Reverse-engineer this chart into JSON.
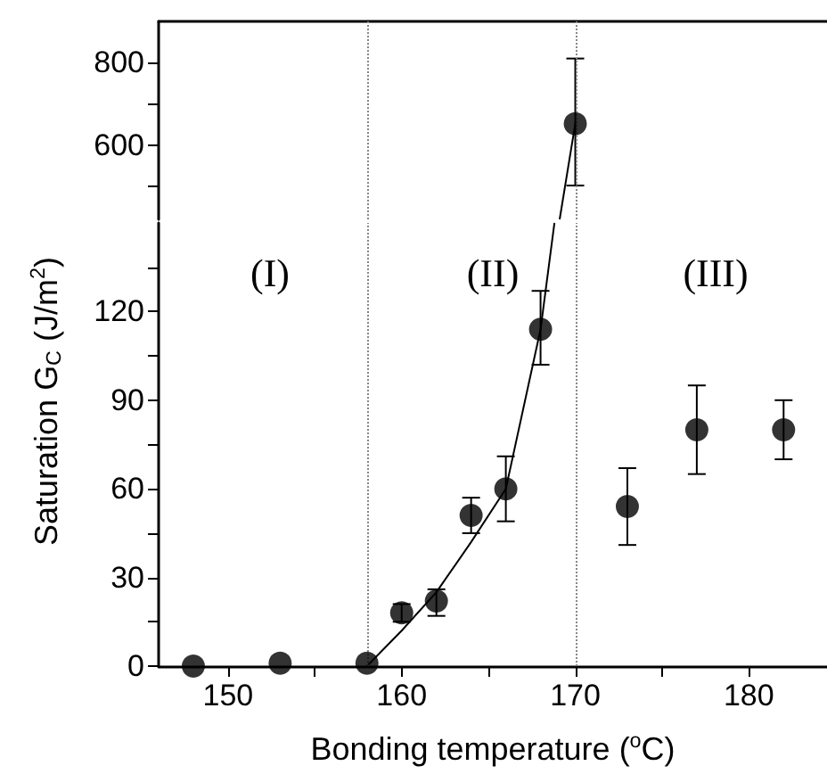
{
  "chart_data": [
    {
      "type": "scatter",
      "tick_labels": "y",
      "xlim": [
        146,
        184.5
      ],
      "ylim": [
        420,
        900
      ],
      "yticks": [
        {
          "value": 500,
          "label": null
        },
        600,
        {
          "value": 700,
          "label": null
        },
        800
      ],
      "series": [
        {
          "marker": "circle",
          "color": "#000000",
          "x": [
            170
          ],
          "values": [
            652
          ],
          "errors": [
            [
              502,
              810
            ]
          ]
        },
        {
          "type": "line",
          "color": "#000000",
          "x": [
            169.1,
            170
          ],
          "values": [
            420,
            652
          ]
        }
      ],
      "ref_lines": [
        {
          "axis": "x",
          "value": 158,
          "color": "#888888",
          "line_style": "dotted"
        },
        {
          "axis": "x",
          "value": 170,
          "color": "#888888",
          "line_style": "dotted"
        }
      ]
    },
    {
      "type": "scatter",
      "xlabel": "Bonding temperature ($^{o}$C)",
      "ylabel": "Saturation G$_{C}$ (J/m$^{2}$)",
      "xlim": [
        146,
        184.5
      ],
      "ylim": [
        0,
        150
      ],
      "xticks": [
        150,
        {
          "value": 155,
          "label": null
        },
        160,
        {
          "value": 165,
          "label": null
        },
        170,
        {
          "value": 175,
          "label": null
        },
        180
      ],
      "yticks": [
        0,
        {
          "value": 15,
          "label": null
        },
        30,
        {
          "value": 45,
          "label": null
        },
        60,
        {
          "value": 75,
          "label": null
        },
        90,
        {
          "value": 105,
          "label": null
        },
        120,
        {
          "value": 135,
          "label": null
        }
      ],
      "series": [
        {
          "marker": "circle",
          "color": "#000000",
          "x": [
            148,
            153,
            158,
            160,
            162,
            164,
            166,
            168,
            173,
            177,
            182
          ],
          "values": [
            0,
            1,
            1,
            18,
            22,
            51,
            60,
            114,
            54,
            80,
            80
          ],
          "errors": [
            null,
            null,
            null,
            [
              15,
              21
            ],
            [
              17,
              26
            ],
            [
              45,
              57
            ],
            [
              49,
              71
            ],
            [
              102,
              127
            ],
            [
              41,
              67
            ],
            [
              65,
              95
            ],
            [
              70,
              90
            ]
          ]
        },
        {
          "type": "line",
          "color": "#000000",
          "x": [
            158,
            160,
            162,
            164,
            166,
            168,
            168.8
          ],
          "values": [
            0,
            12,
            25,
            42,
            60,
            114,
            150
          ]
        }
      ],
      "ref_lines": [
        {
          "axis": "x",
          "value": 158,
          "color": "#888888",
          "line_style": "dotted"
        },
        {
          "axis": "x",
          "value": 170,
          "color": "#888888",
          "line_style": "dotted"
        }
      ],
      "annotations": [
        "(I)",
        "(II)",
        "(III)"
      ]
    }
  ]
}
